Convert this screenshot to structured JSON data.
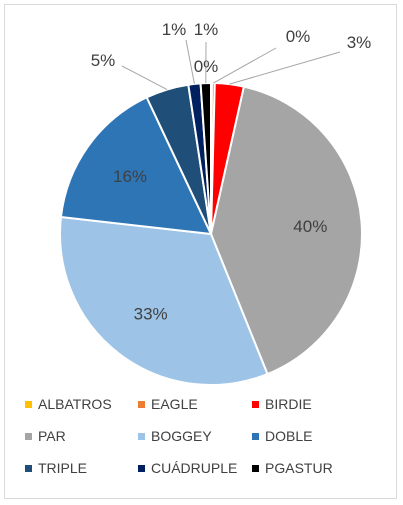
{
  "chart_data": {
    "type": "pie",
    "title": "",
    "categories": [
      "ALBATROS",
      "EAGLE",
      "BIRDIE",
      "PAR",
      "BOGGEY",
      "DOBLE",
      "TRIPLE",
      "CUÁDRUPLE",
      "PGASTUR"
    ],
    "values": [
      0.1,
      0.3,
      3.1,
      40.4,
      32.9,
      16.2,
      4.6,
      1.3,
      1.1
    ],
    "data_labels": [
      "",
      "0%",
      "3%",
      "40%",
      "33%",
      "16%",
      "5%",
      "1%",
      "1%"
    ],
    "extra_labels": [
      "0%"
    ],
    "colors": [
      "#ffc000",
      "#ed7d31",
      "#ff0000",
      "#a5a5a5",
      "#9dc3e6",
      "#2e75b6",
      "#1f4e79",
      "#002060",
      "#000000"
    ],
    "legend": {
      "position": "bottom",
      "entries": [
        "ALBATROS",
        "EAGLE",
        "BIRDIE",
        "PAR",
        "BOGGEY",
        "DOBLE",
        "TRIPLE",
        "CUÁDRUPLE",
        "PGASTUR"
      ]
    }
  }
}
